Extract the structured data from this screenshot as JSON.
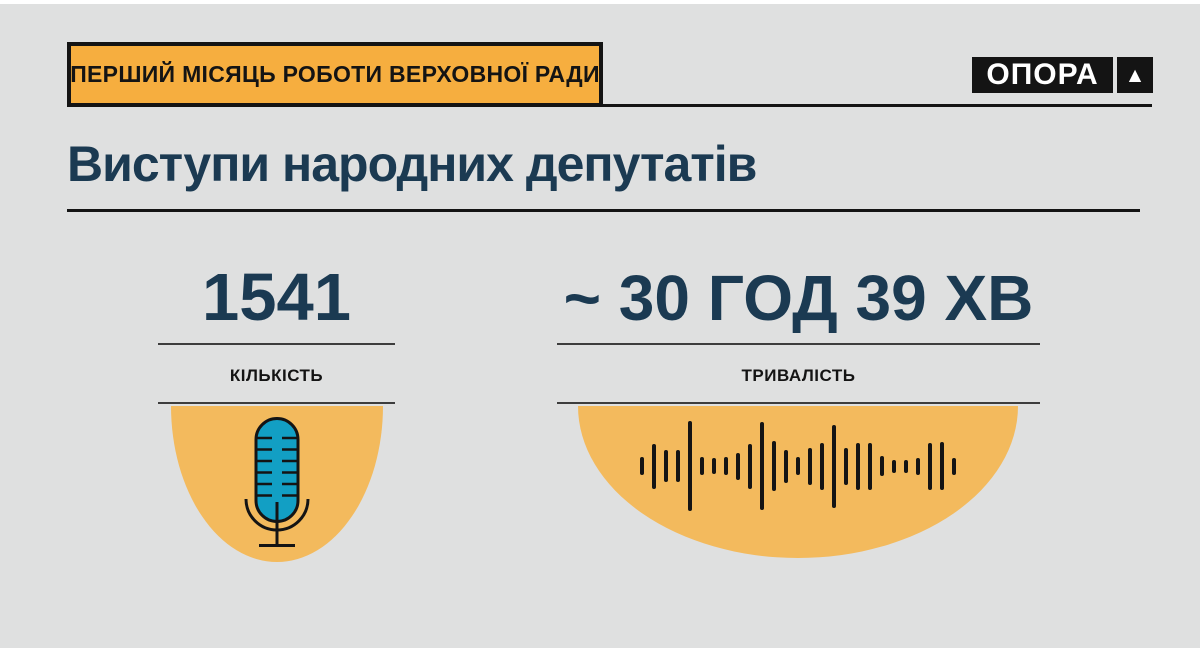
{
  "colors": {
    "canvas": "#dfe0e0",
    "page": "#ffffff",
    "navy": "#1b3a52",
    "black": "#141414",
    "badge_orange": "#f6ae3f",
    "blob_orange": "#f3ba5d",
    "teal": "#129fc4",
    "line": "#3d3d3d",
    "logo_fg": "#ffffff"
  },
  "header": {
    "badge_label": "ПЕРШИЙ МІСЯЦЬ РОБОТИ ВЕРХОВНОЇ РАДИ",
    "logo": {
      "wordmark": "ОПОРА",
      "triangle": "▲"
    }
  },
  "title": "Виступи народних депутатів",
  "stats": {
    "count": {
      "value": "1541",
      "label": "КІЛЬКІСТЬ",
      "icon": "microphone-icon"
    },
    "duration": {
      "value": "~ 30 ГОД 39 ХВ",
      "label": "ТРИВАЛІСТЬ",
      "icon": "waveform-icon"
    }
  },
  "waveform_bars": [
    18,
    45,
    32,
    32,
    90,
    18,
    16,
    18,
    27,
    45,
    88,
    50,
    33,
    18,
    37,
    47,
    83,
    37,
    47,
    47,
    20,
    13,
    13,
    17,
    47,
    48,
    17
  ],
  "chart_data": {
    "type": "table",
    "title": "Виступи народних депутатів",
    "subtitle": "ПЕРШИЙ МІСЯЦЬ РОБОТИ ВЕРХОВНОЇ РАДИ",
    "source": "ОПОРА",
    "categories": [
      "КІЛЬКІСТЬ",
      "ТРИВАЛІСТЬ"
    ],
    "values": [
      "1541",
      "~ 30 ГОД 39 ХВ"
    ]
  }
}
